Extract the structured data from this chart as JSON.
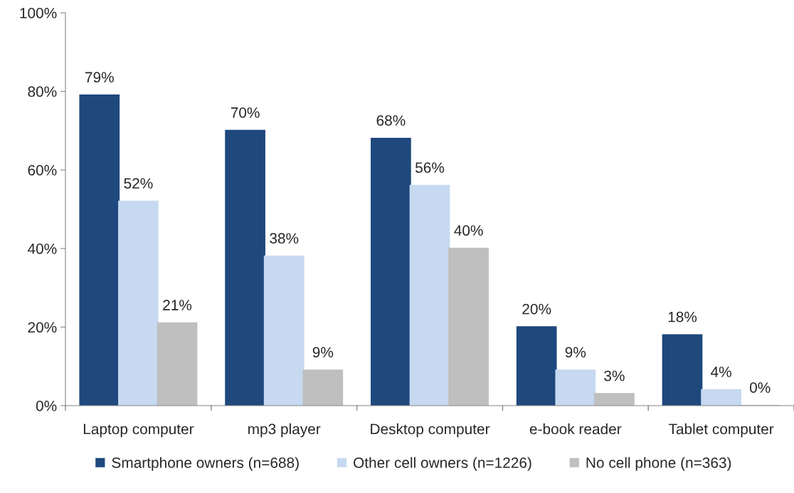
{
  "chart_data": {
    "type": "bar",
    "categories": [
      "Laptop computer",
      "mp3 player",
      "Desktop computer",
      "e-book reader",
      "Tablet computer"
    ],
    "series": [
      {
        "name": "Smartphone owners (n=688)",
        "color": "#1f497d",
        "values": [
          79,
          70,
          68,
          20,
          18
        ],
        "value_labels": [
          "79%",
          "70%",
          "68%",
          "20%",
          "18%"
        ]
      },
      {
        "name": "Other cell owners (n=1226)",
        "color": "#c6d9f1",
        "values": [
          52,
          38,
          56,
          9,
          4
        ],
        "value_labels": [
          "52%",
          "38%",
          "56%",
          "9%",
          "4%"
        ]
      },
      {
        "name": "No cell phone (n=363)",
        "color": "#bfbfbf",
        "values": [
          21,
          9,
          40,
          3,
          0
        ],
        "value_labels": [
          "21%",
          "9%",
          "40%",
          "3%",
          "0%"
        ]
      }
    ],
    "ylim": [
      0,
      100
    ],
    "yticks": [
      {
        "value": 0,
        "label": "0%"
      },
      {
        "value": 20,
        "label": "20%"
      },
      {
        "value": 40,
        "label": "40%"
      },
      {
        "value": 60,
        "label": "60%"
      },
      {
        "value": 80,
        "label": "80%"
      },
      {
        "value": 100,
        "label": "100%"
      }
    ],
    "grid": false,
    "legend": "bottom"
  }
}
